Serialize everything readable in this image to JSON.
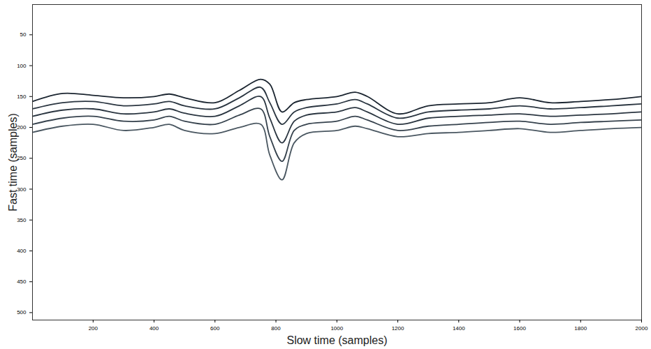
{
  "chart_data": {
    "type": "line",
    "xlabel": "Slow time (samples)",
    "ylabel": "Fast time (samples)",
    "x": [
      1,
      100,
      200,
      300,
      400,
      450,
      500,
      600,
      680,
      750,
      780,
      820,
      860,
      900,
      1000,
      1060,
      1100,
      1200,
      1300,
      1400,
      1500,
      1600,
      1700,
      1800,
      1900,
      2000
    ],
    "series": [
      {
        "color": "#1b2530",
        "values": [
          158,
          145,
          148,
          152,
          150,
          146,
          152,
          160,
          140,
          122,
          130,
          175,
          160,
          155,
          150,
          143,
          150,
          178,
          165,
          162,
          160,
          152,
          160,
          158,
          155,
          150
        ]
      },
      {
        "color": "#2a3540",
        "values": [
          170,
          160,
          158,
          165,
          162,
          158,
          165,
          170,
          152,
          135,
          160,
          195,
          175,
          168,
          162,
          155,
          162,
          185,
          175,
          172,
          170,
          165,
          170,
          168,
          165,
          162
        ]
      },
      {
        "color": "#2a3540",
        "values": [
          182,
          172,
          170,
          178,
          175,
          170,
          177,
          182,
          165,
          150,
          185,
          225,
          190,
          180,
          175,
          168,
          175,
          195,
          185,
          182,
          180,
          178,
          182,
          180,
          178,
          175
        ]
      },
      {
        "color": "#36424d",
        "values": [
          195,
          185,
          182,
          190,
          188,
          182,
          190,
          195,
          180,
          170,
          215,
          255,
          205,
          195,
          190,
          182,
          188,
          205,
          198,
          195,
          192,
          190,
          195,
          192,
          190,
          188
        ]
      },
      {
        "color": "#4a5761",
        "values": [
          208,
          198,
          195,
          205,
          200,
          195,
          205,
          210,
          200,
          195,
          245,
          285,
          225,
          210,
          205,
          198,
          202,
          215,
          210,
          208,
          205,
          202,
          208,
          205,
          202,
          200
        ]
      }
    ],
    "xlim": [
      1,
      2000
    ],
    "xticks": [
      200,
      400,
      600,
      800,
      1000,
      1200,
      1400,
      1600,
      1800,
      2000
    ],
    "ylim": [
      512,
      1
    ],
    "yticks": [
      50,
      100,
      150,
      200,
      250,
      300,
      350,
      400,
      450,
      500
    ],
    "grid": false
  }
}
